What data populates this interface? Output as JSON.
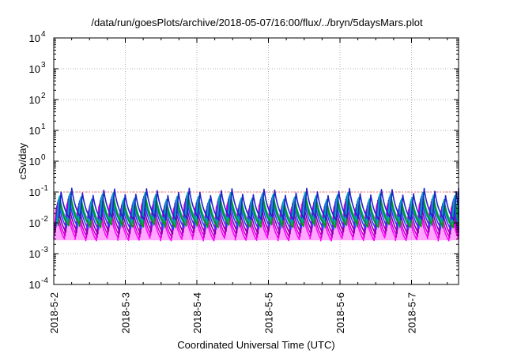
{
  "chart_data": {
    "type": "line",
    "title": "/data/run/goesPlots/archive/2018-05-07/16:00/flux/../bryn/5daysMars.plot",
    "xlabel": "Coordinated Universal Time (UTC)",
    "ylabel": "cSv/day",
    "y_scale": "log",
    "ylim": [
      0.0001,
      10000
    ],
    "xlim": [
      "2018-05-02",
      "2018-05-07 18:00"
    ],
    "x_ticks": [
      "2018-5-2",
      "2018-5-3",
      "2018-5-4",
      "2018-5-5",
      "2018-5-6",
      "2018-5-7"
    ],
    "y_ticks": [
      {
        "value": 10000,
        "base": "10",
        "exp": "4"
      },
      {
        "value": 1000,
        "base": "10",
        "exp": "3"
      },
      {
        "value": 100,
        "base": "10",
        "exp": "2"
      },
      {
        "value": 10,
        "base": "10",
        "exp": "1"
      },
      {
        "value": 1,
        "base": "10",
        "exp": "0"
      },
      {
        "value": 0.1,
        "base": "10",
        "exp": "-1"
      },
      {
        "value": 0.01,
        "base": "10",
        "exp": "-2"
      },
      {
        "value": 0.001,
        "base": "10",
        "exp": "-3"
      },
      {
        "value": 0.0001,
        "base": "10",
        "exp": "-4"
      }
    ],
    "grid": true,
    "reference_line": {
      "y": 0.1,
      "color": "#ff6666"
    },
    "series_pattern": {
      "cycles_per_day": 6.7,
      "shape": "sawtooth",
      "envelope_fill": "#ff00ff"
    },
    "series": [
      {
        "color": "#ff00ff",
        "peak": 0.03,
        "trough": 0.003
      },
      {
        "color": "#cc00cc",
        "peak": 0.035,
        "trough": 0.0038
      },
      {
        "color": "#8800aa",
        "peak": 0.045,
        "trough": 0.005
      },
      {
        "color": "#3333ff",
        "peak": 0.055,
        "trough": 0.007
      },
      {
        "color": "#0088dd",
        "peak": 0.065,
        "trough": 0.009
      },
      {
        "color": "#00aaaa",
        "peak": 0.075,
        "trough": 0.011
      },
      {
        "color": "#009900",
        "peak": 0.05,
        "trough": 0.008
      },
      {
        "color": "#2222cc",
        "peak": 0.1,
        "trough": 0.014
      }
    ]
  }
}
